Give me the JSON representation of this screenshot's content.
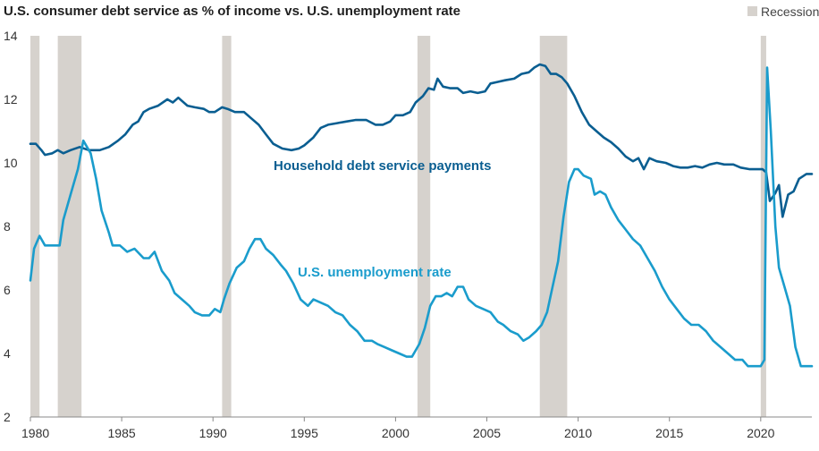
{
  "chart_data": {
    "type": "line",
    "title": "U.S. consumer debt service as % of income vs. U.S. unemployment rate",
    "xlabel": "",
    "ylabel": "",
    "xlim": [
      1980,
      2022.8
    ],
    "ylim": [
      2,
      14
    ],
    "x_ticks": [
      "1980",
      "1985",
      "1990",
      "1995",
      "2000",
      "2005",
      "2010",
      "2015",
      "2020"
    ],
    "y_ticks": [
      "2",
      "4",
      "6",
      "8",
      "10",
      "12",
      "14"
    ],
    "grid": false,
    "legend": {
      "label": "Recession",
      "placement": "top-right"
    },
    "recessions": [
      {
        "start": 1980.0,
        "end": 1980.5
      },
      {
        "start": 1981.5,
        "end": 1982.8
      },
      {
        "start": 1990.5,
        "end": 1991.0
      },
      {
        "start": 2001.2,
        "end": 2001.9
      },
      {
        "start": 2007.9,
        "end": 2009.4
      },
      {
        "start": 2020.0,
        "end": 2020.3
      }
    ],
    "series": [
      {
        "name": "Household debt service payments",
        "color": "#0a5e91",
        "points": [
          [
            1980.0,
            10.6
          ],
          [
            1980.3,
            10.6
          ],
          [
            1980.6,
            10.4
          ],
          [
            1980.8,
            10.25
          ],
          [
            1981.2,
            10.3
          ],
          [
            1981.5,
            10.4
          ],
          [
            1981.8,
            10.3
          ],
          [
            1982.2,
            10.4
          ],
          [
            1982.7,
            10.5
          ],
          [
            1983.2,
            10.4
          ],
          [
            1983.8,
            10.4
          ],
          [
            1984.3,
            10.5
          ],
          [
            1984.8,
            10.7
          ],
          [
            1985.2,
            10.9
          ],
          [
            1985.6,
            11.2
          ],
          [
            1985.9,
            11.3
          ],
          [
            1986.2,
            11.6
          ],
          [
            1986.5,
            11.7
          ],
          [
            1987.0,
            11.8
          ],
          [
            1987.5,
            12.0
          ],
          [
            1987.8,
            11.9
          ],
          [
            1988.1,
            12.05
          ],
          [
            1988.6,
            11.8
          ],
          [
            1989.0,
            11.75
          ],
          [
            1989.5,
            11.7
          ],
          [
            1989.8,
            11.6
          ],
          [
            1990.1,
            11.6
          ],
          [
            1990.5,
            11.75
          ],
          [
            1990.8,
            11.7
          ],
          [
            1991.2,
            11.6
          ],
          [
            1991.7,
            11.6
          ],
          [
            1992.1,
            11.4
          ],
          [
            1992.5,
            11.2
          ],
          [
            1992.9,
            10.9
          ],
          [
            1993.3,
            10.6
          ],
          [
            1993.8,
            10.45
          ],
          [
            1994.3,
            10.4
          ],
          [
            1994.7,
            10.45
          ],
          [
            1995.0,
            10.55
          ],
          [
            1995.5,
            10.8
          ],
          [
            1995.9,
            11.1
          ],
          [
            1996.3,
            11.2
          ],
          [
            1996.8,
            11.25
          ],
          [
            1997.3,
            11.3
          ],
          [
            1997.8,
            11.35
          ],
          [
            1998.4,
            11.35
          ],
          [
            1998.9,
            11.2
          ],
          [
            1999.3,
            11.2
          ],
          [
            1999.7,
            11.3
          ],
          [
            2000.0,
            11.5
          ],
          [
            2000.4,
            11.5
          ],
          [
            2000.8,
            11.6
          ],
          [
            2001.1,
            11.9
          ],
          [
            2001.5,
            12.1
          ],
          [
            2001.8,
            12.35
          ],
          [
            2002.1,
            12.3
          ],
          [
            2002.3,
            12.65
          ],
          [
            2002.6,
            12.4
          ],
          [
            2003.0,
            12.35
          ],
          [
            2003.4,
            12.35
          ],
          [
            2003.7,
            12.2
          ],
          [
            2004.1,
            12.25
          ],
          [
            2004.5,
            12.2
          ],
          [
            2004.9,
            12.25
          ],
          [
            2005.2,
            12.5
          ],
          [
            2005.6,
            12.55
          ],
          [
            2006.0,
            12.6
          ],
          [
            2006.5,
            12.65
          ],
          [
            2006.9,
            12.8
          ],
          [
            2007.3,
            12.85
          ],
          [
            2007.6,
            13.0
          ],
          [
            2007.9,
            13.1
          ],
          [
            2008.2,
            13.05
          ],
          [
            2008.5,
            12.8
          ],
          [
            2008.8,
            12.8
          ],
          [
            2009.1,
            12.7
          ],
          [
            2009.4,
            12.5
          ],
          [
            2009.8,
            12.1
          ],
          [
            2010.2,
            11.6
          ],
          [
            2010.6,
            11.2
          ],
          [
            2011.0,
            11.0
          ],
          [
            2011.4,
            10.8
          ],
          [
            2011.8,
            10.65
          ],
          [
            2012.2,
            10.45
          ],
          [
            2012.6,
            10.2
          ],
          [
            2013.0,
            10.05
          ],
          [
            2013.3,
            10.15
          ],
          [
            2013.6,
            9.8
          ],
          [
            2013.9,
            10.15
          ],
          [
            2014.3,
            10.05
          ],
          [
            2014.8,
            10.0
          ],
          [
            2015.2,
            9.9
          ],
          [
            2015.6,
            9.85
          ],
          [
            2016.0,
            9.85
          ],
          [
            2016.4,
            9.9
          ],
          [
            2016.8,
            9.85
          ],
          [
            2017.2,
            9.95
          ],
          [
            2017.6,
            10.0
          ],
          [
            2018.0,
            9.95
          ],
          [
            2018.5,
            9.95
          ],
          [
            2018.9,
            9.85
          ],
          [
            2019.4,
            9.8
          ],
          [
            2019.8,
            9.8
          ],
          [
            2020.1,
            9.8
          ],
          [
            2020.3,
            9.7
          ],
          [
            2020.5,
            8.8
          ],
          [
            2020.8,
            9.05
          ],
          [
            2021.0,
            9.3
          ],
          [
            2021.2,
            8.3
          ],
          [
            2021.5,
            9.0
          ],
          [
            2021.8,
            9.1
          ],
          [
            2022.1,
            9.5
          ],
          [
            2022.5,
            9.65
          ],
          [
            2022.8,
            9.65
          ]
        ]
      },
      {
        "name": "U.S. unemployment rate",
        "color": "#1a9ccc",
        "points": [
          [
            1980.0,
            6.3
          ],
          [
            1980.2,
            7.3
          ],
          [
            1980.5,
            7.7
          ],
          [
            1980.8,
            7.4
          ],
          [
            1981.2,
            7.4
          ],
          [
            1981.6,
            7.4
          ],
          [
            1981.8,
            8.2
          ],
          [
            1982.2,
            9.0
          ],
          [
            1982.6,
            9.8
          ],
          [
            1982.9,
            10.7
          ],
          [
            1983.3,
            10.3
          ],
          [
            1983.6,
            9.5
          ],
          [
            1983.9,
            8.5
          ],
          [
            1984.3,
            7.8
          ],
          [
            1984.5,
            7.4
          ],
          [
            1984.9,
            7.4
          ],
          [
            1985.3,
            7.2
          ],
          [
            1985.7,
            7.3
          ],
          [
            1986.2,
            7.0
          ],
          [
            1986.5,
            7.0
          ],
          [
            1986.8,
            7.2
          ],
          [
            1987.2,
            6.6
          ],
          [
            1987.6,
            6.3
          ],
          [
            1987.9,
            5.9
          ],
          [
            1988.3,
            5.7
          ],
          [
            1988.7,
            5.5
          ],
          [
            1989.0,
            5.3
          ],
          [
            1989.4,
            5.2
          ],
          [
            1989.8,
            5.2
          ],
          [
            1990.1,
            5.4
          ],
          [
            1990.4,
            5.3
          ],
          [
            1990.6,
            5.7
          ],
          [
            1990.9,
            6.2
          ],
          [
            1991.3,
            6.7
          ],
          [
            1991.7,
            6.9
          ],
          [
            1992.0,
            7.3
          ],
          [
            1992.3,
            7.6
          ],
          [
            1992.6,
            7.6
          ],
          [
            1992.9,
            7.3
          ],
          [
            1993.3,
            7.1
          ],
          [
            1993.7,
            6.8
          ],
          [
            1994.0,
            6.6
          ],
          [
            1994.4,
            6.2
          ],
          [
            1994.8,
            5.7
          ],
          [
            1995.2,
            5.5
          ],
          [
            1995.5,
            5.7
          ],
          [
            1995.9,
            5.6
          ],
          [
            1996.3,
            5.5
          ],
          [
            1996.7,
            5.3
          ],
          [
            1997.1,
            5.2
          ],
          [
            1997.5,
            4.9
          ],
          [
            1997.9,
            4.7
          ],
          [
            1998.3,
            4.4
          ],
          [
            1998.7,
            4.4
          ],
          [
            1999.0,
            4.3
          ],
          [
            1999.4,
            4.2
          ],
          [
            1999.8,
            4.1
          ],
          [
            2000.2,
            4.0
          ],
          [
            2000.6,
            3.9
          ],
          [
            2000.9,
            3.9
          ],
          [
            2001.3,
            4.3
          ],
          [
            2001.6,
            4.8
          ],
          [
            2001.9,
            5.5
          ],
          [
            2002.2,
            5.8
          ],
          [
            2002.5,
            5.8
          ],
          [
            2002.8,
            5.9
          ],
          [
            2003.1,
            5.8
          ],
          [
            2003.4,
            6.1
          ],
          [
            2003.7,
            6.1
          ],
          [
            2004.0,
            5.7
          ],
          [
            2004.4,
            5.5
          ],
          [
            2004.8,
            5.4
          ],
          [
            2005.2,
            5.3
          ],
          [
            2005.6,
            5.0
          ],
          [
            2005.9,
            4.9
          ],
          [
            2006.3,
            4.7
          ],
          [
            2006.7,
            4.6
          ],
          [
            2007.0,
            4.4
          ],
          [
            2007.3,
            4.5
          ],
          [
            2007.7,
            4.7
          ],
          [
            2008.0,
            4.9
          ],
          [
            2008.3,
            5.3
          ],
          [
            2008.6,
            6.1
          ],
          [
            2008.9,
            6.9
          ],
          [
            2009.2,
            8.3
          ],
          [
            2009.5,
            9.4
          ],
          [
            2009.8,
            9.8
          ],
          [
            2010.0,
            9.8
          ],
          [
            2010.3,
            9.6
          ],
          [
            2010.7,
            9.5
          ],
          [
            2010.9,
            9.0
          ],
          [
            2011.2,
            9.1
          ],
          [
            2011.5,
            9.0
          ],
          [
            2011.8,
            8.6
          ],
          [
            2012.2,
            8.2
          ],
          [
            2012.6,
            7.9
          ],
          [
            2013.0,
            7.6
          ],
          [
            2013.4,
            7.4
          ],
          [
            2013.8,
            7.0
          ],
          [
            2014.2,
            6.6
          ],
          [
            2014.6,
            6.1
          ],
          [
            2015.0,
            5.7
          ],
          [
            2015.4,
            5.4
          ],
          [
            2015.8,
            5.1
          ],
          [
            2016.2,
            4.9
          ],
          [
            2016.6,
            4.9
          ],
          [
            2017.0,
            4.7
          ],
          [
            2017.4,
            4.4
          ],
          [
            2017.8,
            4.2
          ],
          [
            2018.2,
            4.0
          ],
          [
            2018.6,
            3.8
          ],
          [
            2019.0,
            3.8
          ],
          [
            2019.3,
            3.6
          ],
          [
            2019.7,
            3.6
          ],
          [
            2020.0,
            3.6
          ],
          [
            2020.2,
            3.8
          ],
          [
            2020.35,
            13.0
          ],
          [
            2020.55,
            11.0
          ],
          [
            2020.8,
            8.0
          ],
          [
            2021.0,
            6.7
          ],
          [
            2021.3,
            6.1
          ],
          [
            2021.6,
            5.5
          ],
          [
            2021.9,
            4.2
          ],
          [
            2022.2,
            3.6
          ],
          [
            2022.5,
            3.6
          ],
          [
            2022.8,
            3.6
          ]
        ],
        "label_position": "below-line"
      }
    ]
  },
  "colors": {
    "recession_shade": "#d6d2cd",
    "axis": "#888888"
  }
}
